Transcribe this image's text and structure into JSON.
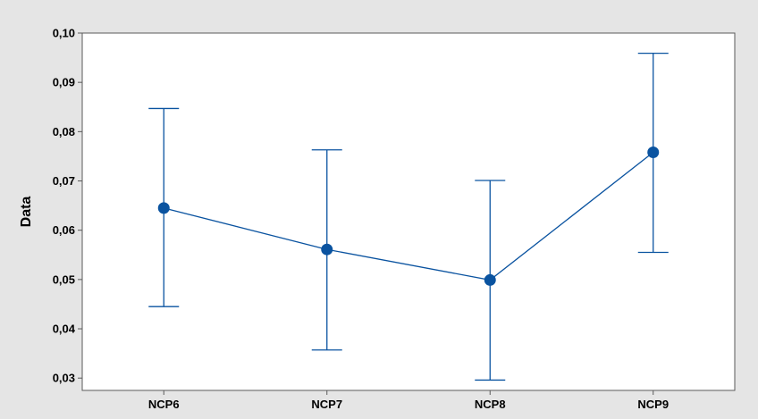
{
  "chart_data": {
    "type": "interval",
    "title": "",
    "xlabel": "",
    "ylabel": "Data",
    "categories": [
      "NCP6",
      "NCP7",
      "NCP8",
      "NCP9"
    ],
    "series": [
      {
        "mean": [
          0.0645,
          0.0561,
          0.0499,
          0.0758
        ],
        "lower": [
          0.0445,
          0.0357,
          0.0296,
          0.0555
        ],
        "upper": [
          0.0847,
          0.0763,
          0.0701,
          0.0959
        ]
      }
    ],
    "ylim": [
      0.0275,
      0.1
    ],
    "yticks": [
      0.03,
      0.04,
      0.05,
      0.06,
      0.07,
      0.08,
      0.09,
      0.1
    ],
    "ytick_labels": [
      "0,03",
      "0,04",
      "0,05",
      "0,06",
      "0,07",
      "0,08",
      "0,09",
      "0,10"
    ],
    "grid": false,
    "colors": {
      "series": "#0a53a0",
      "plot_background": "#ffffff",
      "figure_background": "#e5e5e5",
      "axis": "#5a5a5a"
    }
  }
}
